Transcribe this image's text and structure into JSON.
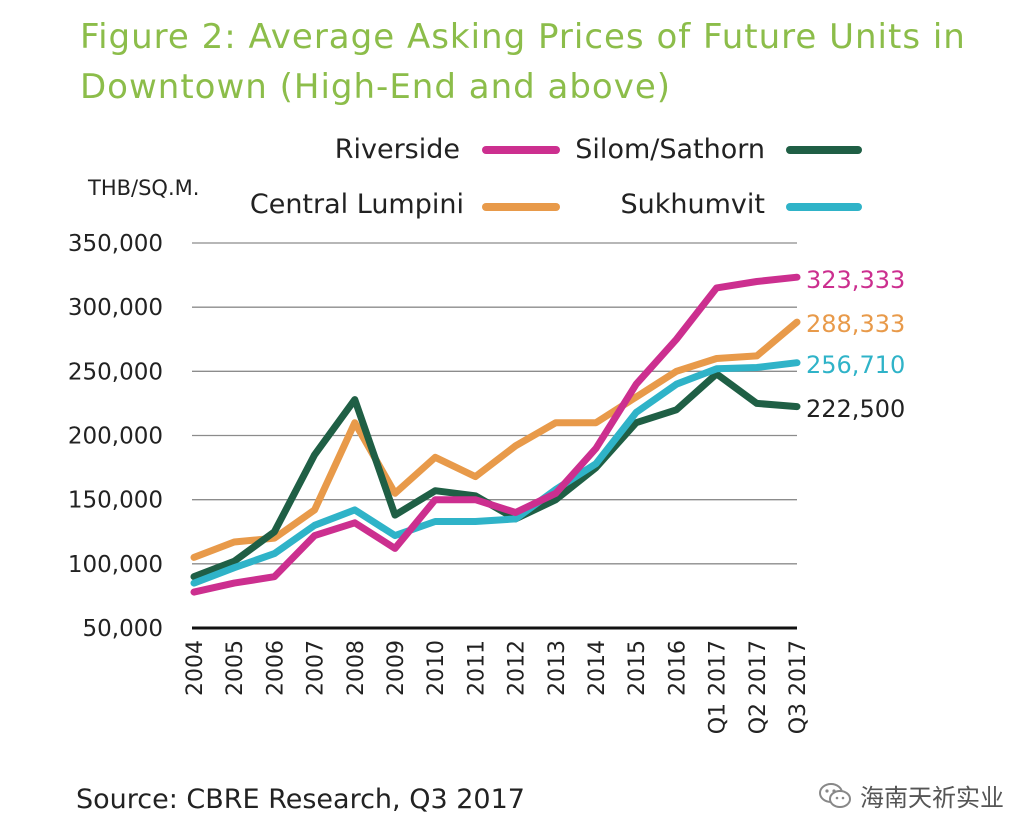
{
  "title_lines": [
    "Figure 2: Average Asking Prices of Future Units in",
    "Downtown (High-End and above)"
  ],
  "source": "Source: CBRE Research, Q3 2017",
  "watermark": {
    "text": "海南天祈实业",
    "icon": "wechat-icon"
  },
  "colors": {
    "title": "#8cbd4a",
    "grid": "#8c8c8c",
    "axis": "#111111"
  },
  "chart_data": {
    "type": "line",
    "ylabel": "THB/SQ.M.",
    "xlabel": "",
    "ylim": [
      50000,
      350000
    ],
    "yticks": [
      50000,
      100000,
      150000,
      200000,
      250000,
      300000,
      350000
    ],
    "ytick_labels": [
      "50,000",
      "100,000",
      "150,000",
      "200,000",
      "250,000",
      "300,000",
      "350,000"
    ],
    "grid": true,
    "legend_position": "top",
    "categories": [
      "2004",
      "2005",
      "2006",
      "2007",
      "2008",
      "2009",
      "2010",
      "2011",
      "2012",
      "2013",
      "2014",
      "2015",
      "2016",
      "Q1 2017",
      "Q2 2017",
      "Q3 2017"
    ],
    "series": [
      {
        "name": "Riverside",
        "color": "#cc2f8f",
        "values": [
          78000,
          85000,
          90000,
          122000,
          132000,
          112000,
          150000,
          150000,
          140000,
          155000,
          190000,
          240000,
          275000,
          315000,
          320000,
          323333
        ],
        "end_label": "323,333"
      },
      {
        "name": "Silom/Sathorn",
        "color": "#1f5f45",
        "values": [
          90000,
          102000,
          125000,
          185000,
          228000,
          138000,
          157000,
          153000,
          135000,
          150000,
          175000,
          210000,
          220000,
          248000,
          225000,
          222500
        ],
        "end_label": "222,500"
      },
      {
        "name": "Central Lumpini",
        "color": "#e89a4a",
        "values": [
          105000,
          117000,
          120000,
          142000,
          210000,
          155000,
          183000,
          168000,
          192000,
          210000,
          210000,
          230000,
          250000,
          260000,
          262000,
          288333
        ],
        "end_label": "288,333"
      },
      {
        "name": "Sukhumvit",
        "color": "#2fb3c8",
        "values": [
          85000,
          97000,
          108000,
          130000,
          142000,
          122000,
          133000,
          133000,
          135000,
          158000,
          178000,
          218000,
          240000,
          252000,
          253000,
          256710
        ],
        "end_label": "256,710"
      }
    ]
  }
}
